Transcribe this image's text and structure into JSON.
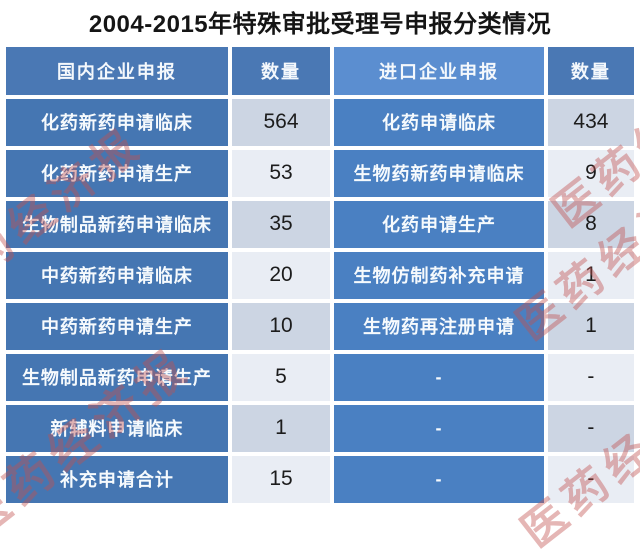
{
  "chart_data": {
    "type": "table",
    "title": "2004-2015年特殊审批受理号申报分类情况",
    "columns": [
      "国内企业申报",
      "数量",
      "进口企业申报",
      "数量"
    ],
    "rows": [
      [
        "化药新药申请临床",
        "564",
        "化药申请临床",
        "434"
      ],
      [
        "化药新药申请生产",
        "53",
        "生物药新药申请临床",
        "9"
      ],
      [
        "生物制品新药申请临床",
        "35",
        "化药申请生产",
        "8"
      ],
      [
        "中药新药申请临床",
        "20",
        "生物仿制药补充申请",
        "1"
      ],
      [
        "中药新药申请生产",
        "10",
        "生物药再注册申请",
        "1"
      ],
      [
        "生物制品新药申请生产",
        "5",
        "-",
        "-"
      ],
      [
        "新辅料申请临床",
        "1",
        "-",
        "-"
      ],
      [
        "补充申请合计",
        "15",
        "-",
        "-"
      ]
    ],
    "layout": {
      "header_style": "blue band",
      "row_striping": "quantity columns alternate gray-blue / near-white",
      "grid": "white 4px gaps between cells"
    }
  },
  "watermark": {
    "text": "医药经济报",
    "color": "#c0504d"
  },
  "colors": {
    "header_blue": "#4a78b4",
    "header_blue_light": "#5b8ed0",
    "domestic_cell_blue": "#4576b2",
    "import_cell_blue": "#4a80c2",
    "count_cell_dark": "#ccd5e3",
    "count_cell_light": "#e9edf4",
    "count_text": "#1c1c1c",
    "title_text": "#151515",
    "watermark_red": "#c0504d"
  }
}
